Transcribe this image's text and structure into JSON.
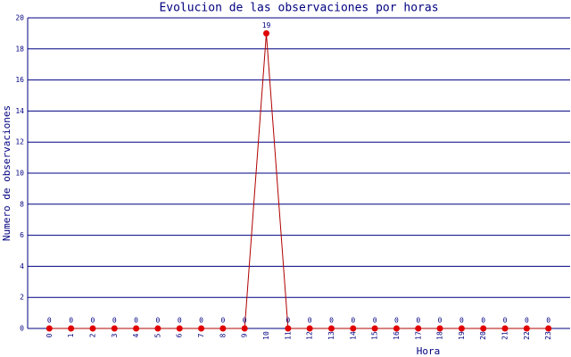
{
  "chart_data": {
    "type": "line",
    "title": "Evolucion de las observaciones por horas",
    "x_label": "Hora",
    "y_label": "Numero de observaciones",
    "categories": [
      "0",
      "1",
      "2",
      "3",
      "4",
      "5",
      "6",
      "7",
      "8",
      "9",
      "10",
      "11",
      "12",
      "13",
      "14",
      "15",
      "16",
      "17",
      "18",
      "19",
      "20",
      "21",
      "22",
      "23"
    ],
    "series": [
      {
        "name": "observaciones",
        "color": "#b00000",
        "values": [
          0,
          0,
          0,
          0,
          0,
          0,
          0,
          0,
          0,
          0,
          19,
          0,
          0,
          0,
          0,
          0,
          0,
          0,
          0,
          0,
          0,
          0,
          0,
          0
        ]
      }
    ],
    "ylim": [
      0,
      20
    ],
    "yticks": [
      0,
      2,
      4,
      6,
      8,
      10,
      12,
      14,
      16,
      18,
      20
    ],
    "grid": true
  }
}
